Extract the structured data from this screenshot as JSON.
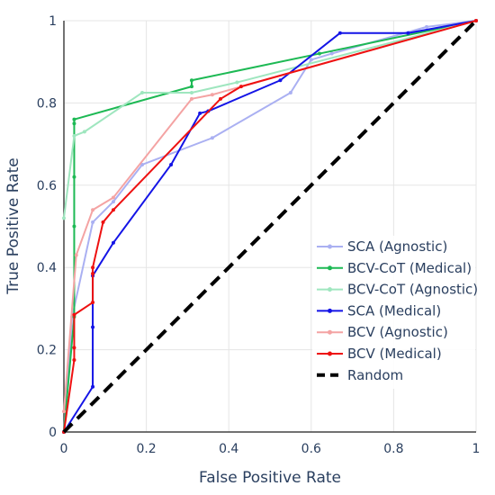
{
  "chart_data": {
    "type": "line",
    "title": "",
    "xlabel": "False Positive Rate",
    "ylabel": "True Positive Rate",
    "xlim": [
      0,
      1
    ],
    "ylim": [
      0,
      1
    ],
    "x_ticks": [
      "0",
      "0.2",
      "0.4",
      "0.6",
      "0.8",
      "1"
    ],
    "y_ticks": [
      "0",
      "0.2",
      "0.4",
      "0.6",
      "0.8",
      "1"
    ],
    "grid": true,
    "legend_position": "right",
    "series": [
      {
        "name": "SCA (Agnostic)",
        "color": "#aab0f2",
        "dash": "solid",
        "markers": true,
        "points": [
          [
            0,
            0
          ],
          [
            0.02,
            0.28
          ],
          [
            0.07,
            0.51
          ],
          [
            0.12,
            0.56
          ],
          [
            0.19,
            0.65
          ],
          [
            0.36,
            0.715
          ],
          [
            0.55,
            0.825
          ],
          [
            0.6,
            0.905
          ],
          [
            0.65,
            0.92
          ],
          [
            0.88,
            0.985
          ],
          [
            1,
            1
          ]
        ]
      },
      {
        "name": "BCV-CoT (Medical)",
        "color": "#1db954",
        "dash": "solid",
        "markers": true,
        "points": [
          [
            0,
            0
          ],
          [
            0.025,
            0.28
          ],
          [
            0.025,
            0.5
          ],
          [
            0.025,
            0.62
          ],
          [
            0.025,
            0.75
          ],
          [
            0.025,
            0.76
          ],
          [
            0.31,
            0.84
          ],
          [
            0.31,
            0.855
          ],
          [
            0.62,
            0.92
          ],
          [
            1,
            1
          ]
        ]
      },
      {
        "name": "BCV-CoT (Agnostic)",
        "color": "#9fe6bf",
        "dash": "solid",
        "markers": true,
        "points": [
          [
            0,
            0.52
          ],
          [
            0.025,
            0.72
          ],
          [
            0.05,
            0.73
          ],
          [
            0.19,
            0.825
          ],
          [
            0.31,
            0.825
          ],
          [
            0.42,
            0.85
          ],
          [
            1,
            1
          ]
        ]
      },
      {
        "name": "SCA (Medical)",
        "color": "#1414e6",
        "dash": "solid",
        "markers": true,
        "points": [
          [
            0,
            0
          ],
          [
            0.07,
            0.11
          ],
          [
            0.07,
            0.255
          ],
          [
            0.07,
            0.38
          ],
          [
            0.12,
            0.46
          ],
          [
            0.26,
            0.65
          ],
          [
            0.33,
            0.775
          ],
          [
            0.35,
            0.78
          ],
          [
            0.525,
            0.855
          ],
          [
            0.67,
            0.97
          ],
          [
            0.835,
            0.97
          ],
          [
            1,
            1
          ]
        ]
      },
      {
        "name": "BCV (Agnostic)",
        "color": "#f4a3a3",
        "dash": "solid",
        "markers": true,
        "points": [
          [
            0,
            0.05
          ],
          [
            0.03,
            0.43
          ],
          [
            0.07,
            0.54
          ],
          [
            0.12,
            0.57
          ],
          [
            0.31,
            0.81
          ],
          [
            0.36,
            0.82
          ],
          [
            1,
            1
          ]
        ]
      },
      {
        "name": "BCV (Medical)",
        "color": "#ee1111",
        "dash": "solid",
        "markers": true,
        "points": [
          [
            0,
            0
          ],
          [
            0.025,
            0.175
          ],
          [
            0.025,
            0.205
          ],
          [
            0.025,
            0.285
          ],
          [
            0.07,
            0.315
          ],
          [
            0.07,
            0.385
          ],
          [
            0.07,
            0.4
          ],
          [
            0.095,
            0.51
          ],
          [
            0.12,
            0.54
          ],
          [
            0.38,
            0.81
          ],
          [
            0.43,
            0.84
          ],
          [
            1,
            1
          ]
        ]
      },
      {
        "name": "Random",
        "color": "#000000",
        "dash": "dash",
        "markers": false,
        "points": [
          [
            0,
            0
          ],
          [
            1,
            1
          ]
        ]
      }
    ]
  }
}
